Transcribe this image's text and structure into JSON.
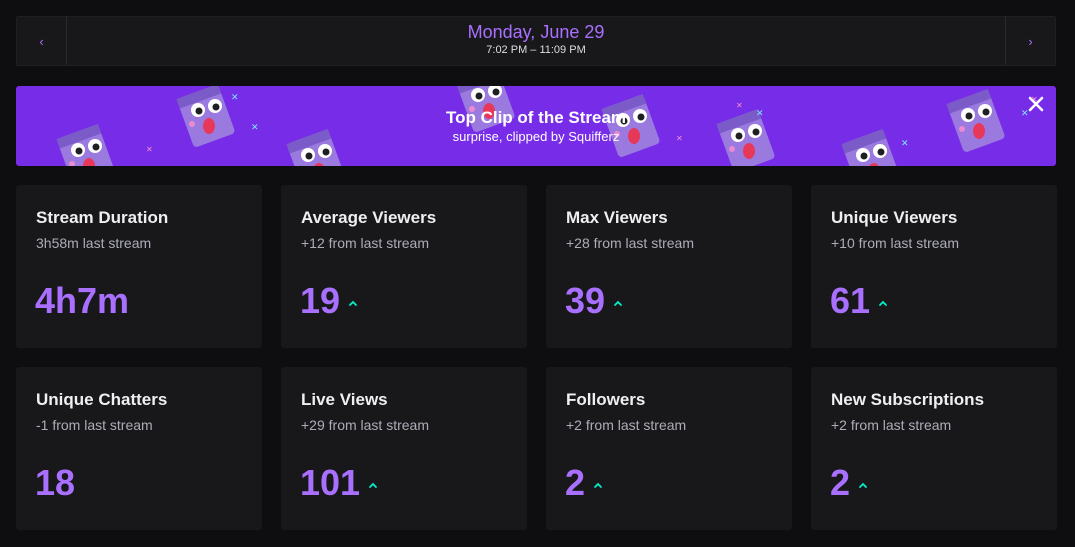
{
  "date_nav": {
    "title": "Monday, June 29",
    "time_range": "7:02 PM – 11:09 PM",
    "prev_glyph": "‹",
    "next_glyph": "›"
  },
  "banner": {
    "title": "Top Clip of the Stream",
    "subtitle": "surprise, clipped by Squifferz",
    "close_icon": "close-icon",
    "background": "#772ce8"
  },
  "colors": {
    "accent": "#a970ff",
    "trend_up": "#00f0c8",
    "card_bg": "#18181b",
    "page_bg": "#0e0e10"
  },
  "stats": [
    {
      "title": "Stream Duration",
      "comparison": "3h58m last stream",
      "value": "4h7m",
      "trend": "none"
    },
    {
      "title": "Average Viewers",
      "comparison": "+12 from last stream",
      "value": "19",
      "trend": "up"
    },
    {
      "title": "Max Viewers",
      "comparison": "+28 from last stream",
      "value": "39",
      "trend": "up"
    },
    {
      "title": "Unique Viewers",
      "comparison": "+10 from last stream",
      "value": "61",
      "trend": "up"
    },
    {
      "title": "Unique Chatters",
      "comparison": "-1 from last stream",
      "value": "18",
      "trend": "none"
    },
    {
      "title": "Live Views",
      "comparison": "+29 from last stream",
      "value": "101",
      "trend": "up"
    },
    {
      "title": "Followers",
      "comparison": "+2 from last stream",
      "value": "2",
      "trend": "up"
    },
    {
      "title": "New Subscriptions",
      "comparison": "+2 from last stream",
      "value": "2",
      "trend": "up"
    }
  ]
}
